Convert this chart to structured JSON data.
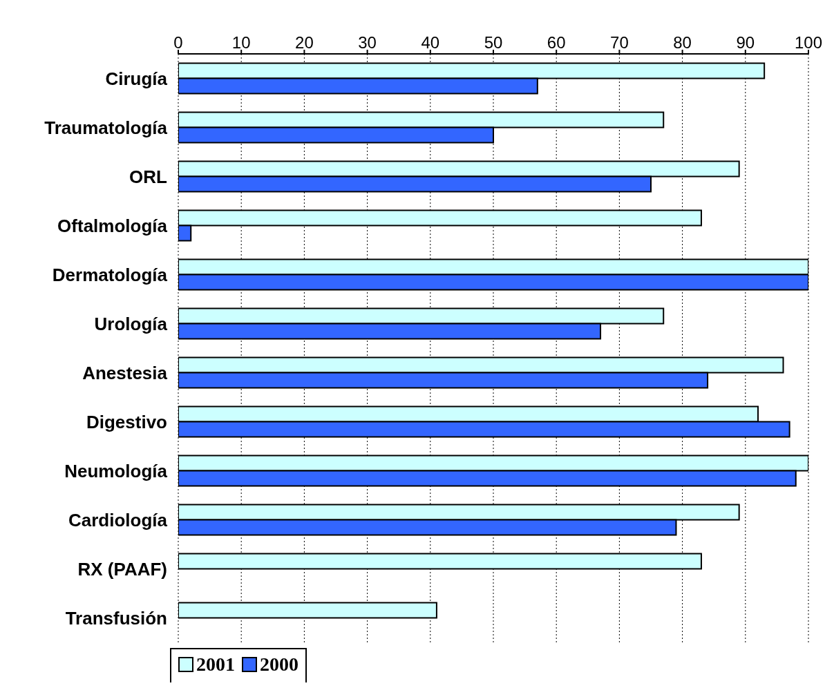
{
  "chart_data": {
    "type": "bar",
    "orientation": "horizontal",
    "categories": [
      "Cirugía",
      "Traumatología",
      "ORL",
      "Oftalmología",
      "Dermatología",
      "Urología",
      "Anestesia",
      "Digestivo",
      "Neumología",
      "Cardiología",
      "RX (PAAF)",
      "Transfusión"
    ],
    "series": [
      {
        "name": "2001",
        "color": "#ccffff",
        "values": [
          93,
          77,
          89,
          83,
          100,
          77,
          96,
          92,
          100,
          89,
          83,
          41
        ]
      },
      {
        "name": "2000",
        "color": "#3366ff",
        "values": [
          57,
          50,
          75,
          2,
          100,
          67,
          84,
          97,
          98,
          79,
          null,
          null
        ]
      }
    ],
    "xlim": [
      0,
      100
    ],
    "xticks": [
      0,
      10,
      20,
      30,
      40,
      50,
      60,
      70,
      80,
      90,
      100
    ],
    "grid": "x",
    "legend": "bottom"
  }
}
